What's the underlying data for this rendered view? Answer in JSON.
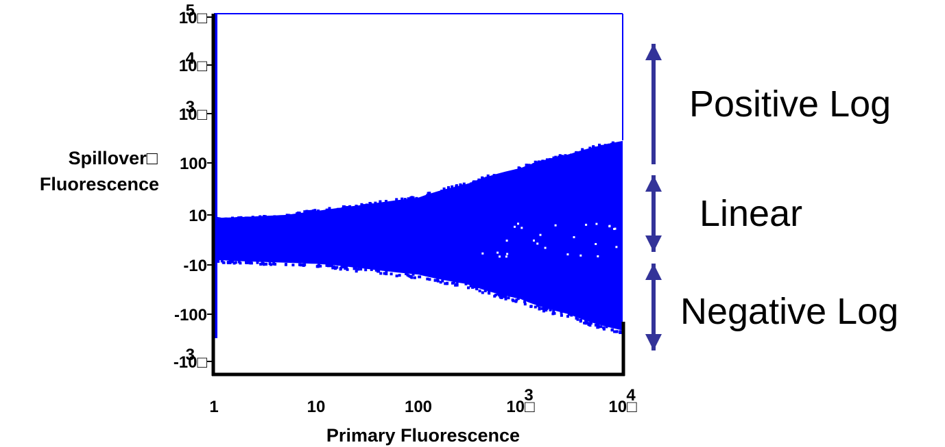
{
  "chart_data": {
    "type": "scatter",
    "title": "",
    "xlabel": "Primary Fluorescence",
    "ylabel_lines": [
      "Spillover□",
      "Fluorescence"
    ],
    "x_scale": "log",
    "y_scale": "biexponential (linear near zero, log for |y| large)",
    "xlim": [
      1,
      10000
    ],
    "ylim": [
      -1000,
      100000
    ],
    "x_ticks": [
      {
        "value": 1,
        "label": "1",
        "sup": ""
      },
      {
        "value": 10,
        "label": "10",
        "sup": ""
      },
      {
        "value": 100,
        "label": "100",
        "sup": ""
      },
      {
        "value": 1000,
        "label": "10□",
        "sup": "3"
      },
      {
        "value": 10000,
        "label": "10□",
        "sup": "4"
      }
    ],
    "y_ticks": [
      {
        "value": 100000,
        "label": "10□",
        "sup": "5"
      },
      {
        "value": 10000,
        "label": "10□",
        "sup": "4"
      },
      {
        "value": 1000,
        "label": "10□",
        "sup": "3"
      },
      {
        "value": 100,
        "label": "100",
        "sup": ""
      },
      {
        "value": 10,
        "label": "10",
        "sup": ""
      },
      {
        "value": -10,
        "label": "-10",
        "sup": ""
      },
      {
        "value": -100,
        "label": "-100",
        "sup": ""
      },
      {
        "value": -1000,
        "label": "-10□",
        "sup": "3"
      }
    ],
    "series_color": "#0000ff",
    "envelope": {
      "x": [
        1,
        2,
        5,
        10,
        30,
        100,
        300,
        1000,
        3000,
        10000
      ],
      "y_upper": [
        7,
        8,
        10,
        12,
        16,
        22,
        40,
        80,
        150,
        280
      ],
      "y_lower": [
        -6,
        -7,
        -8,
        -9,
        -12,
        -16,
        -25,
        -50,
        -100,
        -220
      ]
    },
    "annotations": [
      {
        "label": "Positive Log",
        "span": [
          100,
          100000
        ],
        "arrow": "up"
      },
      {
        "label": "Linear",
        "span": [
          -10,
          100
        ],
        "arrow": "both"
      },
      {
        "label": "Negative Log",
        "span": [
          -1000,
          -10
        ],
        "arrow": "both"
      }
    ],
    "annotation_color": "#333399",
    "grid": false
  }
}
